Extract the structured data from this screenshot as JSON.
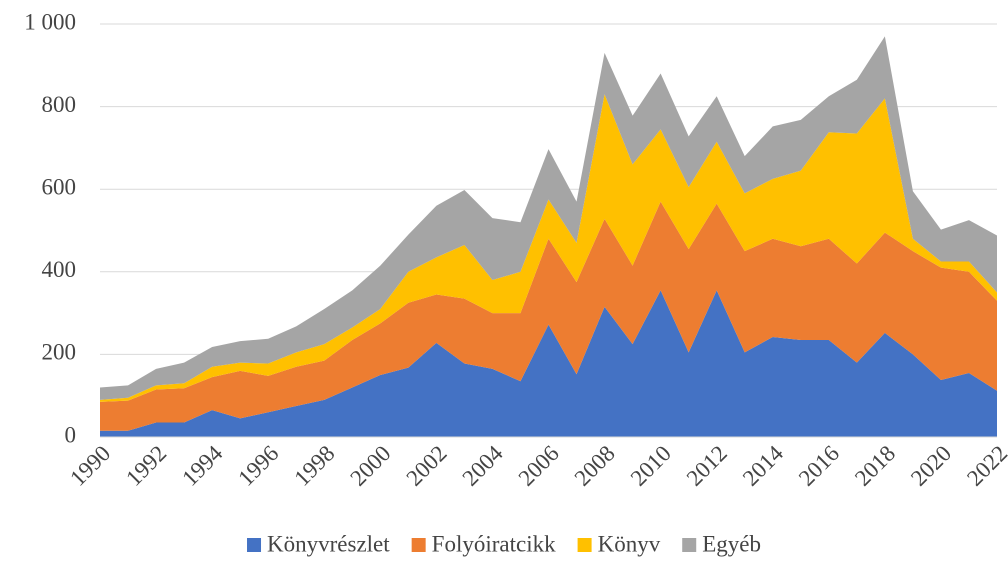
{
  "chart_data": {
    "type": "stacked_area",
    "categories": [
      "1990",
      null,
      "1992",
      null,
      "1994",
      null,
      "1996",
      null,
      "1998",
      null,
      "2000",
      null,
      "2002",
      null,
      "2004",
      null,
      "2006",
      null,
      "2008",
      null,
      "2010",
      null,
      "2012",
      null,
      "2014",
      null,
      "2016",
      null,
      "2018",
      null,
      "2020",
      null,
      "2022"
    ],
    "series": [
      {
        "name": "Könyvrészlet",
        "color": "#4472c4",
        "values": [
          15,
          15,
          35,
          35,
          65,
          45,
          60,
          75,
          90,
          120,
          150,
          168,
          228,
          178,
          165,
          135,
          272,
          152,
          315,
          225,
          355,
          205,
          355,
          205,
          242,
          235,
          235,
          180,
          252,
          200,
          138,
          155,
          112
        ]
      },
      {
        "name": "Folyóiratcikk",
        "color": "#ed7d31",
        "values": [
          70,
          73,
          80,
          83,
          80,
          115,
          88,
          95,
          95,
          115,
          125,
          157,
          117,
          157,
          135,
          165,
          208,
          223,
          213,
          190,
          215,
          250,
          210,
          245,
          238,
          227,
          245,
          240,
          243,
          250,
          272,
          245,
          218
        ]
      },
      {
        "name": "Könyv",
        "color": "#ffc000",
        "values": [
          5,
          7,
          10,
          12,
          25,
          20,
          30,
          35,
          40,
          30,
          35,
          75,
          90,
          130,
          80,
          100,
          95,
          95,
          302,
          245,
          175,
          150,
          150,
          140,
          145,
          183,
          258,
          315,
          325,
          30,
          15,
          25,
          20
        ]
      },
      {
        "name": "Egyéb",
        "color": "#a5a5a5",
        "values": [
          30,
          30,
          40,
          50,
          48,
          52,
          60,
          63,
          85,
          90,
          105,
          90,
          125,
          133,
          150,
          120,
          122,
          100,
          100,
          118,
          135,
          123,
          110,
          90,
          127,
          123,
          87,
          130,
          150,
          115,
          77,
          100,
          138
        ]
      }
    ],
    "ylim": [
      0,
      1000
    ],
    "yticks": [
      0,
      200,
      400,
      600,
      800,
      {
        "value": 1000,
        "label": "1 000"
      }
    ],
    "grid": true
  }
}
